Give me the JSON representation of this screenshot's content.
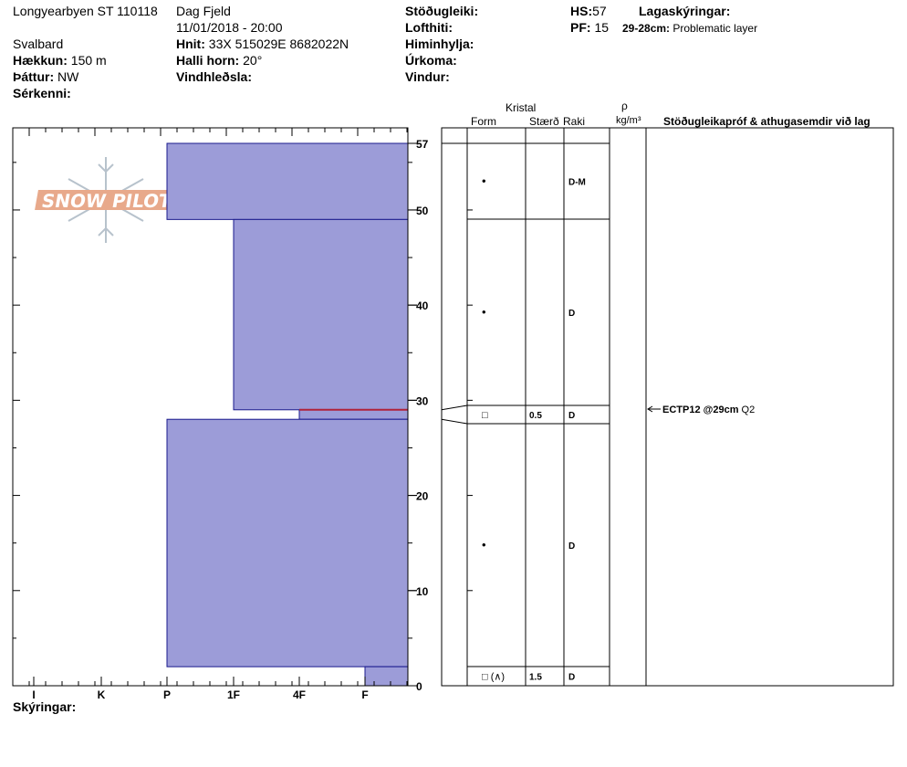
{
  "header": {
    "site_line": "Longyearbyen ST 110118",
    "observer": "Dag Fjeld",
    "datetime": "11/01/2018 - 20:00",
    "region": "Svalbard",
    "elevation_label": "Hækkun:",
    "elevation_value": "150 m",
    "aspect_label": "Þáttur:",
    "aspect_value": "NW",
    "features_label": "Sérkenni:",
    "coords_label": "Hnit:",
    "coords_value": "33X 515029E 8682022N",
    "slope_label": "Halli horn:",
    "slope_value": "20°",
    "wind_loading_label": "Vindhleðsla:",
    "stability_label": "Stöðugleiki:",
    "air_temp_label": "Lofthiti:",
    "sky_label": "Himinhylja:",
    "precip_label": "Úrkoma:",
    "wind_label": "Vindur:",
    "hs_label": "HS:",
    "hs_value": "57",
    "pf_label": "PF:",
    "pf_value": "15",
    "layer_notes_label": "Lagaskýringar:",
    "layer_note_range": "29-28cm:",
    "layer_note_text": "Problematic layer"
  },
  "logo": {
    "text": "SNOW PILOT"
  },
  "columns": {
    "crystal_label": "Kristal",
    "form_label": "Form",
    "size_label": "Stærð",
    "moisture_label": "Raki",
    "density_symbol": "ρ",
    "density_unit": "kg/m³",
    "stability_label": "Stöðugleikapróf & athugasemdir við lag"
  },
  "legend_label": "Skýringar:",
  "colors": {
    "bar_fill": "#9c9cd8",
    "bar_stroke": "#1a1a8c",
    "weak_layer": "#b0223a"
  },
  "chart_data": {
    "type": "snow-profile",
    "depth_unit": "cm",
    "ylim": [
      0,
      57
    ],
    "y_ticks": [
      0,
      10,
      20,
      30,
      40,
      50,
      57
    ],
    "hardness_scale": [
      "I",
      "K",
      "P",
      "1F",
      "4F",
      "F"
    ],
    "layers": [
      {
        "top": 57,
        "bottom": 49,
        "hardness": "P",
        "form": "•",
        "size": "",
        "moisture": "D-M"
      },
      {
        "top": 49,
        "bottom": 29,
        "hardness": "1F",
        "form": "•",
        "size": "",
        "moisture": "D"
      },
      {
        "top": 29,
        "bottom": 28,
        "hardness": "4F",
        "form": "□",
        "size": "0.5",
        "moisture": "D"
      },
      {
        "top": 28,
        "bottom": 2,
        "hardness": "P",
        "form": "•",
        "size": "",
        "moisture": "D"
      },
      {
        "top": 2,
        "bottom": 0,
        "hardness": "F",
        "form": "□ (∧)",
        "size": "1.5",
        "moisture": "D"
      }
    ],
    "stability_tests": [
      {
        "depth": 29,
        "result": "ECTP12 @29cm",
        "quality": "Q2"
      }
    ]
  }
}
